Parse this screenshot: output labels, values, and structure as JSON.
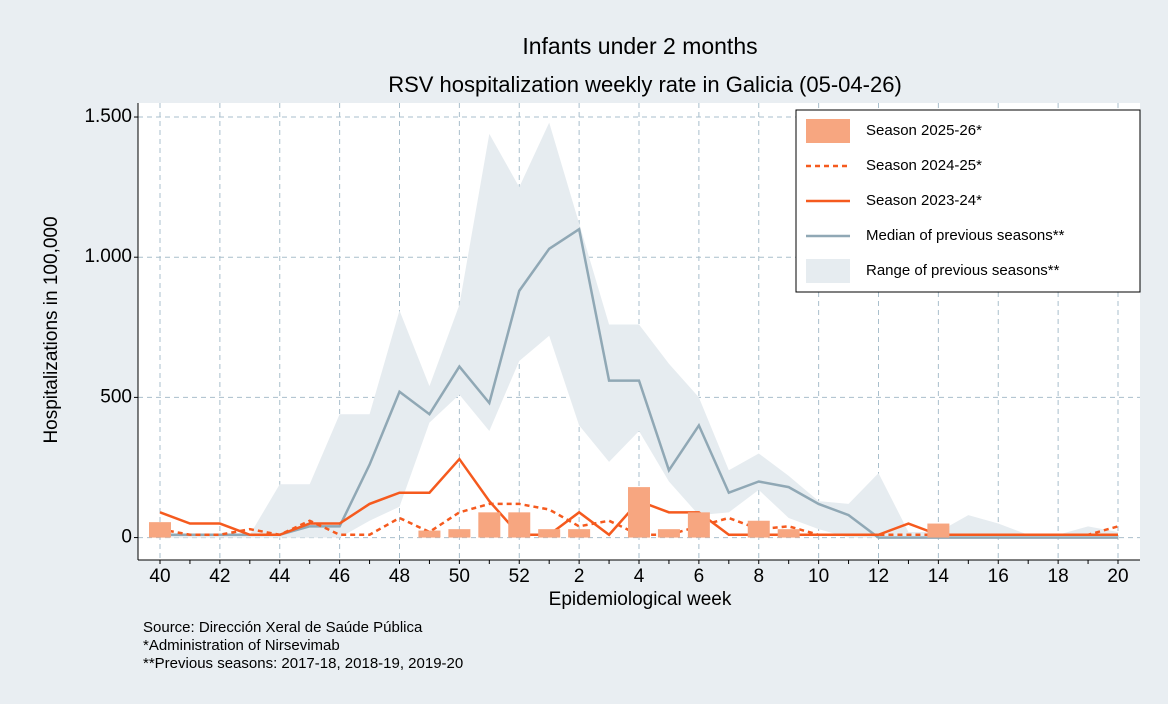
{
  "chart_data": {
    "type": "line",
    "title": "Infants under 2 months",
    "subtitle": "RSV hospitalization weekly rate in Galicia (05-04-26)",
    "y_label": "Hospitalizations in 100,000",
    "x_label": "Epidemiological week",
    "notes": [
      "Source: Dirección Xeral de Saúde Pública",
      "*Administration of Nirsevimab",
      "**Previous seasons: 2017-18, 2018-19, 2019-20"
    ],
    "categories": [
      40,
      null,
      42,
      null,
      44,
      null,
      46,
      null,
      48,
      null,
      50,
      null,
      52,
      null,
      2,
      null,
      4,
      null,
      6,
      null,
      8,
      null,
      10,
      null,
      12,
      null,
      14,
      null,
      16,
      null,
      18,
      null,
      20
    ],
    "ylim": [
      -80,
      1550
    ],
    "yticks": [
      0,
      500,
      {
        "value": 1000,
        "label": "1.000"
      },
      {
        "value": 1500,
        "label": "1.500"
      }
    ],
    "grid": true,
    "legend": "top-right",
    "series": [
      {
        "name": "Season 2025-26*",
        "type": "bar",
        "color": "#f7a680",
        "values": [
          55,
          0,
          0,
          0,
          0,
          0,
          0,
          0,
          0,
          25,
          30,
          90,
          90,
          30,
          30,
          0,
          180,
          30,
          90,
          0,
          60,
          30,
          0,
          0,
          0,
          0,
          50,
          null,
          null,
          null,
          null,
          null,
          null
        ]
      },
      {
        "name": "Season 2024-25*",
        "type": "line",
        "linestyle": "dashed",
        "color": "#f55a1e",
        "values": [
          30,
          10,
          10,
          30,
          10,
          60,
          10,
          10,
          70,
          20,
          90,
          120,
          120,
          100,
          40,
          60,
          10,
          10,
          40,
          70,
          30,
          40,
          10,
          10,
          10,
          10,
          10,
          10,
          10,
          10,
          10,
          10,
          40
        ]
      },
      {
        "name": "Season 2023-24*",
        "type": "line",
        "linestyle": "solid",
        "color": "#f55a1e",
        "values": [
          90,
          50,
          50,
          10,
          10,
          50,
          50,
          120,
          160,
          160,
          280,
          130,
          10,
          10,
          90,
          10,
          130,
          90,
          90,
          10,
          10,
          10,
          10,
          10,
          10,
          50,
          10,
          10,
          10,
          10,
          10,
          10,
          10
        ]
      },
      {
        "name": "Median of previous seasons**",
        "type": "line",
        "linestyle": "solid",
        "color": "#90a8b5",
        "values": [
          10,
          10,
          10,
          10,
          10,
          40,
          40,
          260,
          520,
          440,
          610,
          480,
          880,
          1030,
          1100,
          560,
          560,
          240,
          400,
          160,
          200,
          180,
          120,
          80,
          0,
          0,
          0,
          0,
          0,
          0,
          0,
          0,
          0
        ]
      },
      {
        "name": "Range of previous seasons**",
        "type": "range",
        "color": "#e6ecf0",
        "upper": [
          10,
          10,
          10,
          10,
          190,
          190,
          440,
          440,
          810,
          540,
          830,
          1440,
          1250,
          1480,
          1120,
          760,
          760,
          620,
          500,
          240,
          300,
          220,
          130,
          120,
          230,
          20,
          20,
          80,
          50,
          10,
          10,
          40,
          20
        ],
        "lower": [
          0,
          0,
          0,
          0,
          0,
          0,
          0,
          60,
          110,
          410,
          510,
          380,
          630,
          720,
          400,
          270,
          380,
          200,
          80,
          90,
          170,
          70,
          30,
          0,
          0,
          0,
          0,
          0,
          0,
          0,
          0,
          0,
          0
        ]
      }
    ]
  }
}
